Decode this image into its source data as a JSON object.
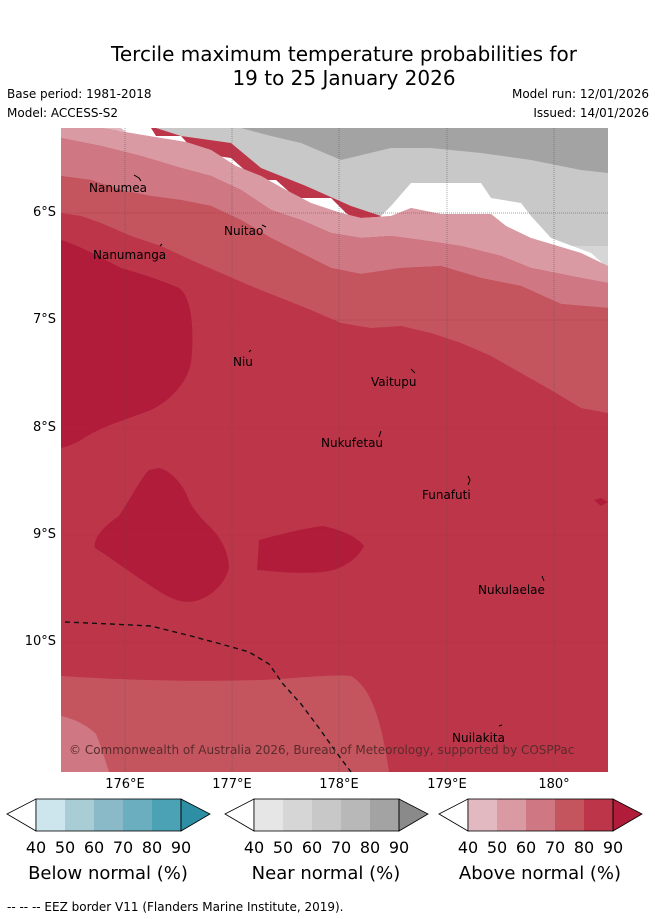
{
  "title": {
    "line1": "Tercile maximum temperature probabilities for",
    "line2": "19 to 25 January 2026"
  },
  "meta": {
    "base_period": "Base period: 1981-2018",
    "model": "Model: ACCESS-S2",
    "model_run": "Model run: 12/01/2026",
    "issued": "Issued: 14/01/2026"
  },
  "map": {
    "lat_labels": [
      "6°S",
      "7°S",
      "8°S",
      "9°S",
      "10°S"
    ],
    "lon_labels": [
      "176°E",
      "177°E",
      "178°E",
      "179°E",
      "180°"
    ],
    "places": [
      "Nanumea",
      "Nuitao",
      "Nanumanga",
      "Niu",
      "Vaitupu",
      "Nukufetau",
      "Funafuti",
      "Nukulaelae",
      "Nuilakita"
    ],
    "copyright": "© Commonwealth of Australia 2026, Bureau of Meteorology, supported by COSPPac",
    "colors": {
      "above": [
        "#e2b9c0",
        "#d99aa4",
        "#cf7883",
        "#c4555f",
        "#bd3549",
        "#b01c39"
      ],
      "near": [
        "#e6e6e6",
        "#d6d6d6",
        "#c8c8c8",
        "#b8b8b8",
        "#a3a3a3",
        "#8a8a8a"
      ],
      "below": [
        "#cde5ec",
        "#a9cdd4",
        "#8ab9c8",
        "#6aaebf",
        "#4aa2b4",
        "#2e8ea3"
      ]
    }
  },
  "colorbars": [
    {
      "title": "Below normal (%)",
      "ticks": [
        "40",
        "50",
        "60",
        "70",
        "80",
        "90"
      ]
    },
    {
      "title": "Near normal (%)",
      "ticks": [
        "40",
        "50",
        "60",
        "70",
        "80",
        "90"
      ]
    },
    {
      "title": "Above normal (%)",
      "ticks": [
        "40",
        "50",
        "60",
        "70",
        "80",
        "90"
      ]
    }
  ],
  "footer": "--  --  -- EEZ border V11 (Flanders Marine Institute, 2019)."
}
